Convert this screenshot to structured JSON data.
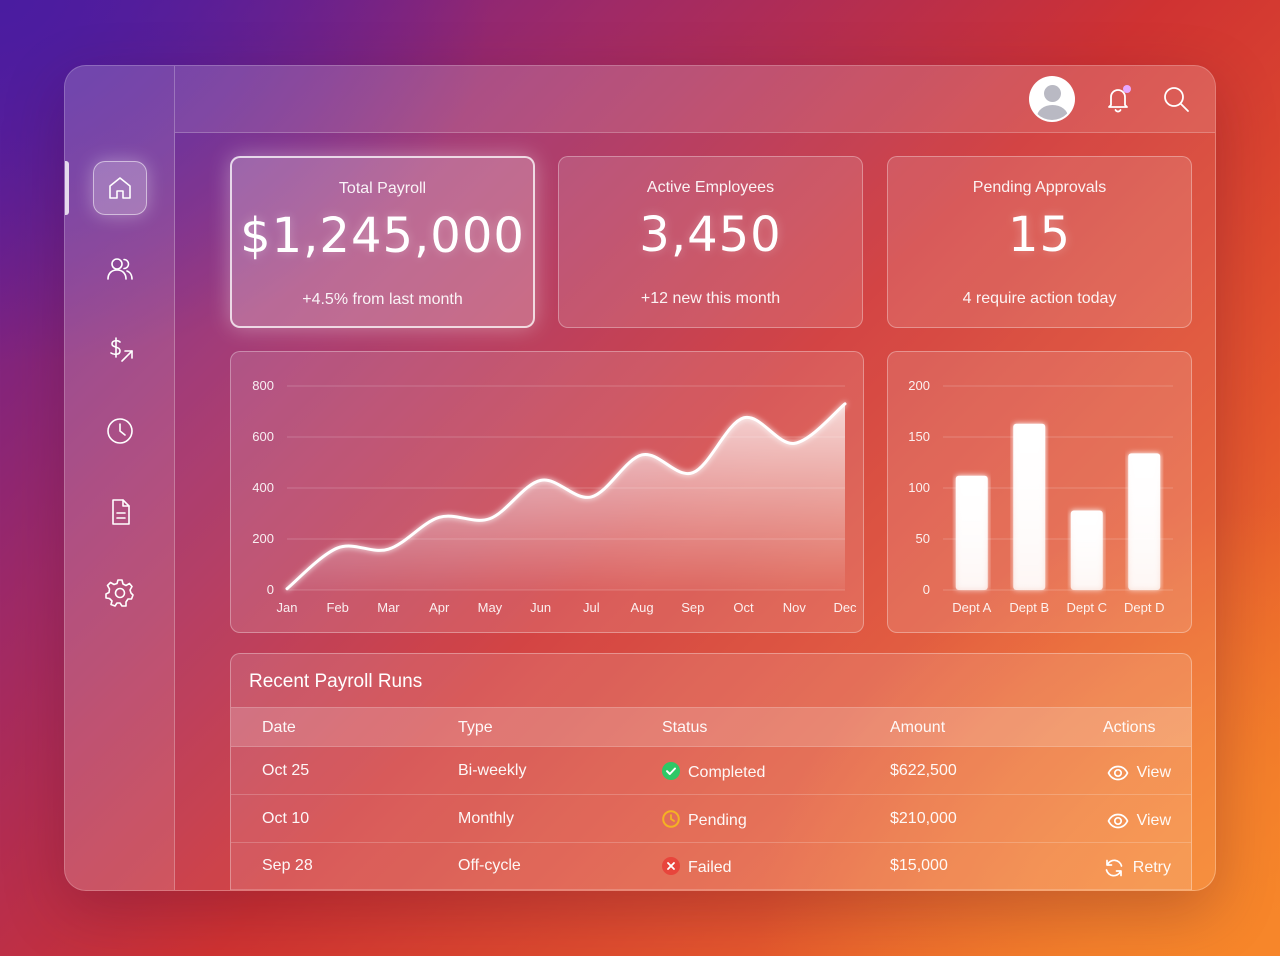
{
  "header": {
    "avatar": "avatar",
    "icons": [
      "bell-icon",
      "search-icon"
    ]
  },
  "sidebar": {
    "items": [
      {
        "name": "home",
        "icon": "home-icon",
        "active": true
      },
      {
        "name": "employees",
        "icon": "users-icon",
        "active": false
      },
      {
        "name": "payments",
        "icon": "dollar-transfer-icon",
        "active": false
      },
      {
        "name": "time",
        "icon": "clock-icon",
        "active": false
      },
      {
        "name": "documents",
        "icon": "document-icon",
        "active": false
      },
      {
        "name": "settings",
        "icon": "gear-icon",
        "active": false
      }
    ]
  },
  "stats": [
    {
      "label": "Total Payroll",
      "value": "$1,245,000",
      "sub": "+4.5% from last month"
    },
    {
      "label": "Active Employees",
      "value": "3,450",
      "sub": "+12 new this month"
    },
    {
      "label": "Pending Approvals",
      "value": "15",
      "sub": "4 require action today"
    }
  ],
  "chart_data": [
    {
      "type": "area",
      "categories": [
        "Jan",
        "Feb",
        "Mar",
        "Apr",
        "May",
        "Jun",
        "Jul",
        "Aug",
        "Sep",
        "Oct",
        "Nov",
        "Dec"
      ],
      "values": [
        5,
        165,
        160,
        285,
        280,
        430,
        365,
        530,
        460,
        675,
        575,
        730
      ],
      "title": "",
      "xlabel": "",
      "ylabel": "",
      "ylim": [
        0,
        800
      ],
      "yticks": [
        0,
        200,
        400,
        600,
        800
      ],
      "grid": true
    },
    {
      "type": "bar",
      "categories": [
        "Dept A",
        "Dept B",
        "Dept C",
        "Dept D"
      ],
      "values": [
        112,
        163,
        78,
        134
      ],
      "title": "",
      "xlabel": "",
      "ylabel": "",
      "ylim": [
        0,
        200
      ],
      "yticks": [
        0,
        50,
        100,
        150,
        200
      ],
      "grid": true
    }
  ],
  "table": {
    "title": "Recent Payroll Runs",
    "columns": [
      "Date",
      "Type",
      "Status",
      "Amount",
      "Actions"
    ],
    "rows": [
      {
        "date": "Oct 25",
        "type": "Bi-weekly",
        "status": "Completed",
        "status_icon": "check-circle-icon",
        "status_color": "#2ec866",
        "amount": "$622,500",
        "action": "View",
        "action_icon": "eye-icon"
      },
      {
        "date": "Oct 10",
        "type": "Monthly",
        "status": "Pending",
        "status_icon": "clock-icon",
        "status_color": "#f4b223",
        "amount": "$210,000",
        "action": "View",
        "action_icon": "eye-icon"
      },
      {
        "date": "Sep 28",
        "type": "Off-cycle",
        "status": "Failed",
        "status_icon": "x-circle-icon",
        "status_color": "#e8453c",
        "amount": "$15,000",
        "action": "Retry",
        "action_icon": "refresh-icon"
      }
    ]
  }
}
